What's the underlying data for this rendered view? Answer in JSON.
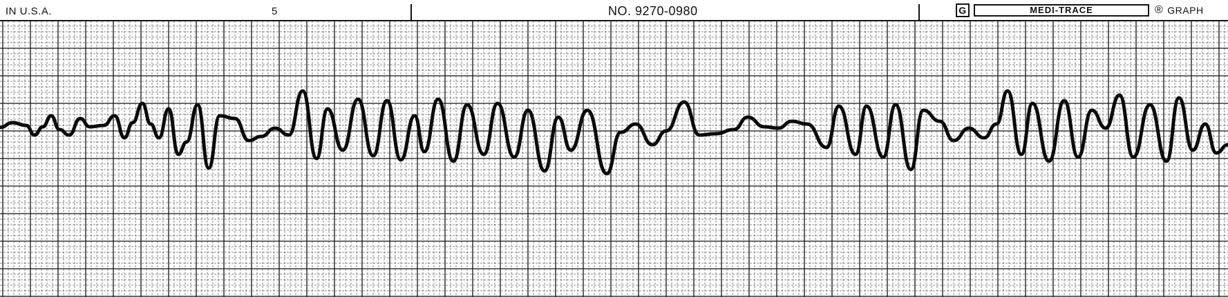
{
  "header": {
    "left_text": "IN U.S.A.",
    "page_number": "5",
    "chart_number": "NO. 9270-0980",
    "brand_letter": "G",
    "brand_name": "MEDI-TRACE",
    "registered_mark": "®",
    "right_text": "GRAPH"
  },
  "colors": {
    "paper": "#ffffff",
    "grid": "#111111",
    "trace": "#0a0a0a"
  }
}
